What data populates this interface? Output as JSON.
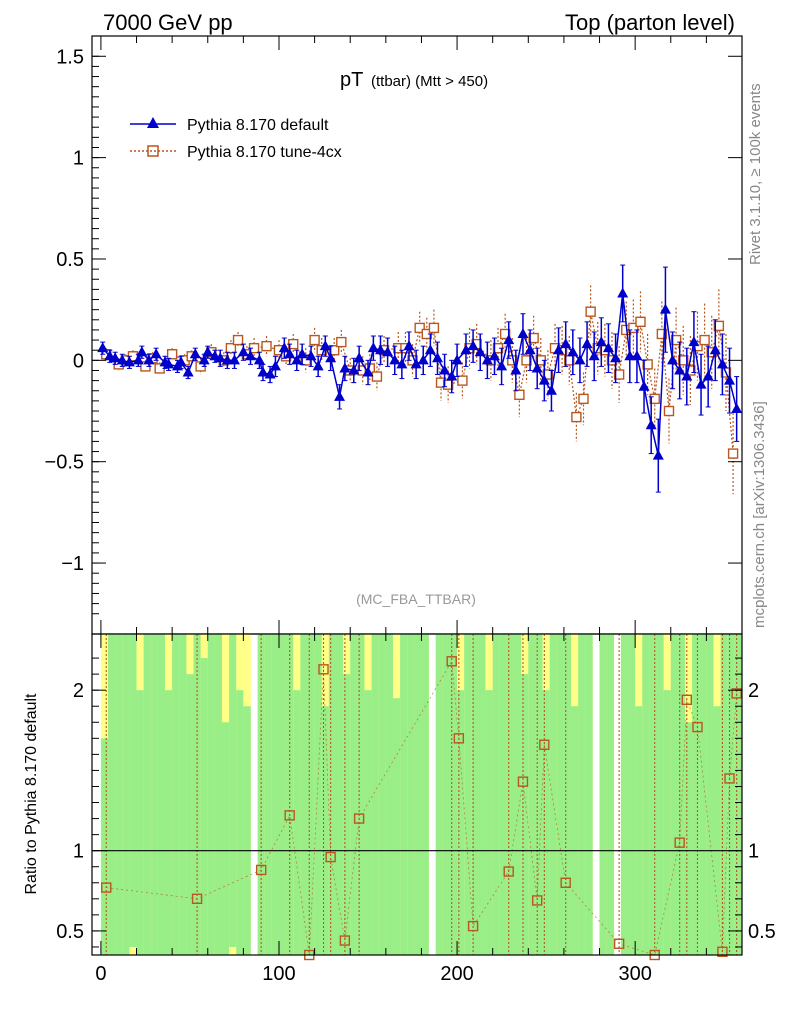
{
  "header": {
    "left": "7000 GeV pp",
    "right": "Top (parton level)"
  },
  "side_labels": {
    "rivet": "Rivet 3.1.10, ≥ 100k events",
    "mcplots": "mcplots.cern.ch [arXiv:1306.3436]"
  },
  "chart_data": [
    {
      "type": "scatter",
      "panel": "main",
      "title_main": "pT",
      "title_sub": "(ttbar) (Mtt > 450)",
      "watermark": "(MC_FBA_TTBAR)",
      "xlabel": "",
      "ylabel": "",
      "xlim": [
        -5,
        360
      ],
      "ylim": [
        -1.35,
        1.6
      ],
      "yticks": [
        1.5,
        1,
        0.5,
        0,
        -0.5,
        -1
      ],
      "ytick_labels": [
        "1.5",
        "1",
        "0.5",
        "0",
        "−0.5",
        "−1"
      ],
      "legend": {
        "position": "top-left",
        "entries": [
          "Pythia 8.170 default",
          "Pythia 8.170 tune-4cx"
        ]
      },
      "colors": {
        "default": "#0000cc",
        "tune": "#b8571f"
      },
      "series": [
        {
          "name": "Pythia 8.170 default",
          "marker": "triangle",
          "x": [
            1,
            5,
            8,
            12,
            16,
            21,
            23,
            27,
            31,
            36,
            38,
            43,
            45,
            49,
            53,
            58,
            60,
            64,
            67,
            71,
            75,
            80,
            84,
            89,
            91,
            95,
            98,
            103,
            106,
            110,
            113,
            118,
            122,
            126,
            129,
            134,
            137,
            142,
            145,
            150,
            153,
            157,
            161,
            165,
            169,
            173,
            177,
            181,
            185,
            189,
            193,
            197,
            200,
            205,
            209,
            213,
            217,
            221,
            225,
            229,
            233,
            237,
            241,
            245,
            249,
            253,
            257,
            261,
            265,
            269,
            273,
            277,
            281,
            285,
            289,
            293,
            297,
            301,
            305,
            309,
            313,
            317,
            321,
            325,
            329,
            333,
            337,
            341,
            345,
            349,
            353,
            357
          ],
          "y": [
            0.06,
            0.02,
            0.01,
            0.0,
            -0.01,
            0.0,
            0.04,
            0.0,
            0.03,
            -0.01,
            -0.02,
            -0.03,
            -0.01,
            -0.06,
            0.03,
            0.0,
            0.04,
            0.02,
            0.01,
            0.0,
            0.0,
            0.04,
            0.02,
            0.0,
            -0.06,
            -0.07,
            -0.03,
            0.06,
            0.03,
            0.0,
            0.03,
            0.02,
            -0.03,
            0.07,
            0.01,
            -0.18,
            -0.04,
            -0.05,
            0.01,
            -0.06,
            0.06,
            0.05,
            0.04,
            0.0,
            -0.02,
            0.07,
            -0.02,
            0.0,
            0.05,
            0.01,
            -0.05,
            -0.08,
            0.0,
            0.05,
            0.07,
            0.04,
            0.0,
            0.02,
            -0.03,
            0.1,
            -0.05,
            0.13,
            0.05,
            -0.04,
            -0.1,
            -0.15,
            0.05,
            0.08,
            0.04,
            0.0,
            0.08,
            0.02,
            0.09,
            0.06,
            0.01,
            0.33,
            0.02,
            0.02,
            -0.13,
            -0.32,
            -0.47,
            0.25,
            0.0,
            -0.05,
            -0.08,
            0.09,
            -0.12,
            -0.08,
            0.05,
            -0.02,
            -0.1,
            -0.24
          ],
          "err": [
            0.03,
            0.03,
            0.03,
            0.03,
            0.03,
            0.03,
            0.03,
            0.03,
            0.03,
            0.03,
            0.03,
            0.03,
            0.03,
            0.03,
            0.03,
            0.03,
            0.03,
            0.03,
            0.04,
            0.04,
            0.04,
            0.04,
            0.04,
            0.04,
            0.04,
            0.04,
            0.05,
            0.05,
            0.05,
            0.05,
            0.05,
            0.05,
            0.05,
            0.05,
            0.06,
            0.06,
            0.06,
            0.06,
            0.06,
            0.06,
            0.06,
            0.07,
            0.07,
            0.07,
            0.07,
            0.07,
            0.07,
            0.07,
            0.08,
            0.08,
            0.08,
            0.08,
            0.08,
            0.08,
            0.08,
            0.09,
            0.09,
            0.09,
            0.09,
            0.09,
            0.1,
            0.1,
            0.1,
            0.1,
            0.1,
            0.1,
            0.11,
            0.11,
            0.11,
            0.11,
            0.11,
            0.12,
            0.12,
            0.12,
            0.12,
            0.14,
            0.13,
            0.13,
            0.13,
            0.14,
            0.18,
            0.21,
            0.14,
            0.14,
            0.14,
            0.15,
            0.15,
            0.15,
            0.15,
            0.15,
            0.16,
            0.16
          ]
        },
        {
          "name": "Pythia 8.170 tune-4cx",
          "marker": "open-square",
          "x": [
            3,
            10,
            14,
            18,
            25,
            29,
            33,
            40,
            47,
            51,
            56,
            62,
            69,
            73,
            77,
            82,
            86,
            93,
            100,
            104,
            108,
            115,
            120,
            124,
            131,
            135,
            140,
            147,
            151,
            155,
            159,
            167,
            171,
            175,
            179,
            183,
            187,
            191,
            195,
            203,
            207,
            211,
            219,
            223,
            227,
            231,
            235,
            239,
            243,
            247,
            251,
            255,
            259,
            263,
            267,
            271,
            275,
            279,
            283,
            287,
            291,
            295,
            299,
            303,
            307,
            311,
            315,
            319,
            323,
            327,
            331,
            335,
            339,
            343,
            347,
            351,
            355
          ],
          "y": [
            0.03,
            -0.02,
            0.0,
            0.02,
            -0.03,
            0.01,
            -0.04,
            0.03,
            0.0,
            0.02,
            -0.03,
            0.04,
            0.0,
            0.06,
            0.1,
            0.03,
            0.06,
            0.07,
            0.05,
            0.02,
            0.08,
            0.0,
            0.1,
            0.05,
            0.05,
            0.09,
            -0.05,
            -0.05,
            -0.04,
            -0.08,
            0.05,
            0.06,
            0.06,
            0.0,
            0.16,
            0.13,
            0.16,
            -0.11,
            -0.12,
            -0.1,
            0.06,
            0.08,
            0.0,
            0.06,
            0.13,
            0.0,
            -0.17,
            0.0,
            0.11,
            0.0,
            -0.07,
            0.06,
            0.05,
            0.0,
            -0.28,
            -0.19,
            0.24,
            0.06,
            0.05,
            0.0,
            -0.07,
            0.15,
            0.16,
            0.19,
            -0.02,
            -0.19,
            0.13,
            -0.25,
            0.1,
            0.0,
            -0.05,
            0.07,
            0.1,
            0.04,
            0.17,
            -0.06,
            -0.46
          ],
          "err": [
            0.03,
            0.03,
            0.03,
            0.03,
            0.03,
            0.03,
            0.03,
            0.03,
            0.03,
            0.03,
            0.04,
            0.04,
            0.04,
            0.04,
            0.04,
            0.04,
            0.05,
            0.05,
            0.05,
            0.05,
            0.05,
            0.06,
            0.06,
            0.06,
            0.06,
            0.06,
            0.06,
            0.07,
            0.07,
            0.07,
            0.07,
            0.08,
            0.08,
            0.08,
            0.08,
            0.08,
            0.09,
            0.09,
            0.09,
            0.09,
            0.1,
            0.1,
            0.1,
            0.1,
            0.1,
            0.11,
            0.11,
            0.11,
            0.11,
            0.11,
            0.12,
            0.12,
            0.12,
            0.12,
            0.12,
            0.13,
            0.13,
            0.13,
            0.13,
            0.14,
            0.14,
            0.14,
            0.14,
            0.15,
            0.15,
            0.15,
            0.16,
            0.16,
            0.16,
            0.17,
            0.17,
            0.17,
            0.18,
            0.18,
            0.18,
            0.19,
            0.2
          ]
        }
      ]
    },
    {
      "type": "scatter",
      "panel": "ratio",
      "ylabel": "Ratio to Pythia 8.170 default",
      "xlim": [
        -5,
        360
      ],
      "ylim": [
        0.35,
        2.35
      ],
      "xticks": [
        0,
        100,
        200,
        300
      ],
      "xtick_labels": [
        "0",
        "100",
        "200",
        "300"
      ],
      "yticks": [
        2,
        1,
        0.5
      ],
      "ytick_labels": [
        "2",
        "1",
        "0.5"
      ],
      "reference_line": 1,
      "band_colors": {
        "inner": "#99ee88",
        "outer": "#ffff88"
      },
      "bands": {
        "x": [
          0,
          4,
          8,
          12,
          16,
          20,
          24,
          28,
          32,
          36,
          40,
          44,
          48,
          52,
          56,
          60,
          64,
          68,
          72,
          76,
          80,
          84,
          88,
          92,
          96,
          100,
          104,
          108,
          112,
          116,
          120,
          124,
          128,
          132,
          136,
          140,
          144,
          148,
          152,
          156,
          160,
          164,
          168,
          172,
          176,
          180,
          184,
          188,
          192,
          196,
          200,
          204,
          208,
          212,
          216,
          220,
          224,
          228,
          232,
          236,
          240,
          244,
          248,
          252,
          256,
          260,
          264,
          268,
          272,
          276,
          280,
          284,
          288,
          292,
          296,
          300,
          304,
          308,
          312,
          316,
          320,
          324,
          328,
          332,
          336,
          340,
          344,
          348,
          352,
          356
        ],
        "width": 4,
        "inner_top": [
          1.7,
          2.35,
          2.35,
          2.35,
          2.35,
          2.0,
          2.35,
          2.35,
          2.35,
          2.0,
          2.35,
          2.35,
          2.1,
          2.35,
          2.2,
          2.35,
          2.35,
          1.8,
          2.35,
          2.0,
          1.9,
          null,
          2.35,
          2.35,
          2.35,
          2.35,
          2.35,
          2.0,
          2.35,
          2.35,
          2.35,
          1.9,
          2.35,
          2.35,
          2.1,
          2.35,
          2.35,
          2.0,
          2.35,
          2.35,
          2.35,
          1.95,
          2.35,
          2.35,
          2.35,
          2.35,
          null,
          2.35,
          2.35,
          2.35,
          2.0,
          2.35,
          2.35,
          2.35,
          2.0,
          2.35,
          2.35,
          2.35,
          2.35,
          2.1,
          2.35,
          2.35,
          2.0,
          2.35,
          2.35,
          2.35,
          1.9,
          2.35,
          2.35,
          null,
          2.35,
          2.35,
          null,
          2.35,
          2.35,
          1.9,
          2.35,
          2.35,
          2.35,
          2.0,
          2.35,
          2.35,
          1.8,
          2.35,
          2.35,
          2.35,
          1.9,
          2.35,
          2.35,
          2.35
        ],
        "inner_bottom": [
          0.35,
          0.35,
          0.35,
          0.35,
          0.4,
          0.35,
          0.35,
          0.35,
          0.35,
          0.35,
          0.35,
          0.35,
          0.35,
          0.35,
          0.35,
          0.35,
          0.35,
          0.35,
          0.4,
          0.35,
          0.35,
          null,
          0.35,
          0.35,
          0.35,
          0.35,
          0.35,
          0.35,
          0.35,
          0.35,
          0.35,
          0.35,
          0.35,
          0.35,
          0.35,
          0.35,
          0.35,
          0.35,
          0.35,
          0.35,
          0.35,
          0.35,
          0.35,
          0.35,
          0.35,
          0.35,
          null,
          0.35,
          0.35,
          0.35,
          0.35,
          0.35,
          0.35,
          0.35,
          0.35,
          0.35,
          0.35,
          0.35,
          0.35,
          0.35,
          0.35,
          0.35,
          0.35,
          0.35,
          0.35,
          0.35,
          0.35,
          0.35,
          0.35,
          null,
          0.35,
          0.35,
          null,
          0.35,
          0.35,
          0.35,
          0.35,
          0.35,
          0.35,
          0.35,
          0.35,
          0.35,
          0.35,
          0.35,
          0.35,
          0.35,
          0.35,
          0.35,
          0.35,
          0.35
        ],
        "outer_top": [
          2.35,
          2.35,
          2.35,
          2.35,
          2.35,
          2.35,
          2.35,
          2.35,
          2.35,
          2.35,
          2.35,
          2.35,
          2.35,
          2.35,
          2.35,
          2.35,
          2.35,
          2.35,
          2.35,
          2.35,
          2.35,
          null,
          2.35,
          2.35,
          2.35,
          2.35,
          2.35,
          2.35,
          2.35,
          2.35,
          2.35,
          2.35,
          2.35,
          2.35,
          2.35,
          2.35,
          2.35,
          2.35,
          2.35,
          2.35,
          2.35,
          2.35,
          2.35,
          2.35,
          2.35,
          2.35,
          null,
          2.35,
          2.35,
          2.35,
          2.35,
          2.35,
          2.35,
          2.35,
          2.35,
          2.35,
          2.35,
          2.35,
          2.35,
          2.35,
          2.35,
          2.35,
          2.35,
          2.35,
          2.35,
          2.35,
          2.35,
          2.35,
          2.35,
          null,
          2.35,
          2.35,
          null,
          2.35,
          2.35,
          2.35,
          2.35,
          2.35,
          2.35,
          2.35,
          2.35,
          2.35,
          2.35,
          2.35,
          2.35,
          2.35,
          2.35,
          2.35,
          2.35,
          2.35
        ],
        "outer_bottom": [
          0.35,
          0.35,
          0.35,
          0.35,
          0.35,
          0.35,
          0.35,
          0.35,
          0.35,
          0.35,
          0.35,
          0.35,
          0.35,
          0.35,
          0.35,
          0.35,
          0.35,
          0.35,
          0.35,
          0.35,
          0.35,
          null,
          0.35,
          0.35,
          0.35,
          0.35,
          0.35,
          0.35,
          0.35,
          0.35,
          0.35,
          0.35,
          0.35,
          0.35,
          0.35,
          0.35,
          0.35,
          0.35,
          0.35,
          0.35,
          0.35,
          0.35,
          0.35,
          0.35,
          0.35,
          0.35,
          null,
          0.35,
          0.35,
          0.35,
          0.35,
          0.35,
          0.35,
          0.35,
          0.35,
          0.35,
          0.35,
          0.35,
          0.35,
          0.35,
          0.35,
          0.35,
          0.35,
          0.35,
          0.35,
          0.35,
          0.35,
          0.35,
          0.35,
          null,
          0.35,
          0.35,
          null,
          0.35,
          0.35,
          0.35,
          0.35,
          0.35,
          0.35,
          0.35,
          0.35,
          0.35,
          0.35,
          0.35,
          0.35,
          0.35,
          0.35,
          0.35,
          0.35,
          0.35
        ]
      },
      "ratio_points": {
        "name": "Pythia 8.170 tune-4cx",
        "x": [
          3,
          54,
          90,
          106,
          117,
          125,
          129,
          137,
          145,
          197,
          201,
          209,
          229,
          237,
          245,
          249,
          261,
          291,
          311,
          325,
          329,
          335,
          349,
          353,
          357
        ],
        "y": [
          0.77,
          0.7,
          0.88,
          1.22,
          0.35,
          2.13,
          0.96,
          0.44,
          1.2,
          2.18,
          1.7,
          0.53,
          0.87,
          1.43,
          0.69,
          1.66,
          0.8,
          0.42,
          0.35,
          1.05,
          1.94,
          1.77,
          0.37,
          1.45,
          1.98
        ]
      }
    }
  ]
}
